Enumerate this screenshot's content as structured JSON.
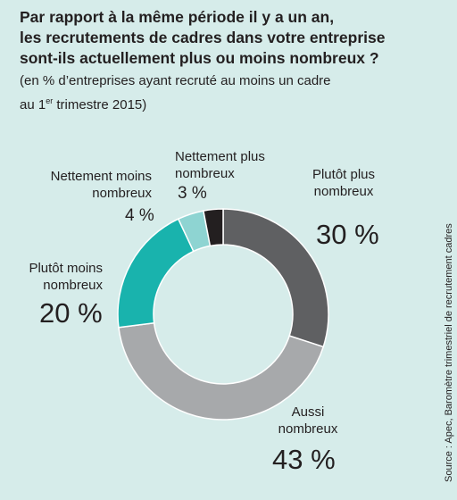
{
  "chart_data": {
    "type": "donut",
    "title": [
      "Par rapport à la même période il y a un an,",
      "les recrutements de cadres dans votre entreprise",
      "sont-ils actuellement plus ou moins nombreux ?"
    ],
    "subtitle": [
      "(en % d’entreprises ayant recruté au moins un cadre",
      "au 1",
      "er",
      "trimestre 2015)"
    ],
    "categories": [
      "Plutôt plus nombreux",
      "Aussi nombreux",
      "Plutôt moins nombreux",
      "Nettement moins nombreux",
      "Nettement plus nombreux"
    ],
    "values": [
      30,
      43,
      20,
      4,
      3
    ],
    "value_labels": [
      "30 %",
      "43 %",
      "20 %",
      "4 %",
      "3 %"
    ],
    "colors": [
      "#5f6062",
      "#a7a9ab",
      "#19b3ad",
      "#8ed4d2",
      "#231f20"
    ],
    "source": "Source : Apec, Baromètre trimestriel de recrutement cadres"
  }
}
